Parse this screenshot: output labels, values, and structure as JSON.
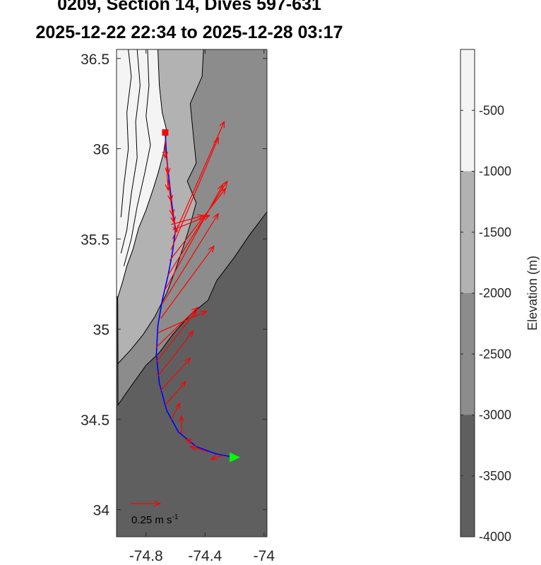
{
  "chart_data": {
    "type": "map",
    "title_lines": [
      "0209, Section 14, Dives 597-631",
      "2025-12-22 22:34 to 2025-12-28 03:17"
    ],
    "xlim": [
      -75.0,
      -73.98
    ],
    "ylim": [
      33.85,
      36.55
    ],
    "xticks": [
      -74.8,
      -74.4,
      -74.0
    ],
    "xtick_labels": [
      "-74.8",
      "-74.4",
      "-74"
    ],
    "yticks": [
      34.0,
      34.5,
      35.0,
      35.5,
      36.0,
      36.5
    ],
    "ytick_labels": [
      "34",
      "34.5",
      "35",
      "35.5",
      "36",
      "36.5"
    ],
    "colorbar": {
      "label": "Elevation (m)",
      "range": [
        -4000,
        0
      ],
      "ticks": [
        -500,
        -1000,
        -1500,
        -2000,
        -2500,
        -3000,
        -3500,
        -4000
      ],
      "tick_labels": [
        "-500",
        "-1000",
        "-1500",
        "-2000",
        "-2500",
        "-3000",
        "-3500",
        "-4000"
      ],
      "bands": [
        {
          "from": -1000,
          "to": 0,
          "color": "#f4f4f4"
        },
        {
          "from": -2000,
          "to": -1000,
          "color": "#b2b2b2"
        },
        {
          "from": -3000,
          "to": -2000,
          "color": "#8c8c8c"
        },
        {
          "from": -4000,
          "to": -3000,
          "color": "#5f5f5f"
        }
      ]
    },
    "bathymetry": {
      "shelf_boundary": [
        [
          -74.99,
          36.55
        ],
        [
          -74.72,
          36.55
        ],
        [
          -74.71,
          36.35
        ],
        [
          -74.69,
          36.2
        ],
        [
          -74.66,
          36.1
        ],
        [
          -74.68,
          35.98
        ],
        [
          -74.72,
          35.86
        ],
        [
          -74.75,
          35.78
        ],
        [
          -74.8,
          35.66
        ],
        [
          -74.85,
          35.56
        ],
        [
          -74.89,
          35.44
        ],
        [
          -74.93,
          35.35
        ],
        [
          -74.96,
          35.26
        ],
        [
          -74.99,
          35.18
        ]
      ],
      "mid_boundary": [
        [
          -74.41,
          36.55
        ],
        [
          -74.42,
          36.4
        ],
        [
          -74.5,
          36.25
        ],
        [
          -74.48,
          36.08
        ],
        [
          -74.46,
          35.92
        ],
        [
          -74.52,
          35.82
        ],
        [
          -74.46,
          35.7
        ],
        [
          -74.5,
          35.58
        ],
        [
          -74.55,
          35.45
        ],
        [
          -74.6,
          35.33
        ],
        [
          -74.66,
          35.2
        ],
        [
          -74.74,
          35.07
        ],
        [
          -74.82,
          34.97
        ],
        [
          -74.91,
          34.88
        ],
        [
          -74.99,
          34.81
        ]
      ],
      "deep_boundary": [
        [
          -73.98,
          35.65
        ],
        [
          -74.1,
          35.52
        ],
        [
          -74.2,
          35.4
        ],
        [
          -74.32,
          35.27
        ],
        [
          -74.38,
          35.16
        ],
        [
          -74.5,
          35.08
        ],
        [
          -74.62,
          34.97
        ],
        [
          -74.71,
          34.87
        ],
        [
          -74.8,
          34.8
        ],
        [
          -74.87,
          34.72
        ],
        [
          -74.94,
          34.64
        ],
        [
          -74.99,
          34.58
        ]
      ],
      "contours": [
        [
          [
            -74.92,
            36.55
          ],
          [
            -74.9,
            36.4
          ],
          [
            -74.93,
            36.2
          ],
          [
            -74.92,
            36.0
          ],
          [
            -74.95,
            35.8
          ],
          [
            -74.97,
            35.62
          ]
        ],
        [
          [
            -74.86,
            36.55
          ],
          [
            -74.84,
            36.35
          ],
          [
            -74.87,
            36.15
          ],
          [
            -74.86,
            35.95
          ],
          [
            -74.9,
            35.75
          ],
          [
            -74.93,
            35.55
          ],
          [
            -74.97,
            35.42
          ]
        ],
        [
          [
            -74.79,
            36.55
          ],
          [
            -74.78,
            36.35
          ],
          [
            -74.8,
            36.18
          ],
          [
            -74.77,
            36.02
          ],
          [
            -74.81,
            35.86
          ],
          [
            -74.86,
            35.68
          ],
          [
            -74.9,
            35.5
          ],
          [
            -74.95,
            35.35
          ]
        ]
      ]
    },
    "track": [
      [
        -74.67,
        36.09
      ],
      [
        -74.66,
        35.95
      ],
      [
        -74.64,
        35.8
      ],
      [
        -74.62,
        35.66
      ],
      [
        -74.6,
        35.55
      ],
      [
        -74.62,
        35.43
      ],
      [
        -74.65,
        35.3
      ],
      [
        -74.69,
        35.16
      ],
      [
        -74.72,
        35.02
      ],
      [
        -74.73,
        34.86
      ],
      [
        -74.71,
        34.7
      ],
      [
        -74.66,
        34.55
      ],
      [
        -74.58,
        34.43
      ],
      [
        -74.46,
        34.35
      ],
      [
        -74.33,
        34.31
      ],
      [
        -74.2,
        34.29
      ]
    ],
    "start_marker": {
      "lon": -74.67,
      "lat": 36.09,
      "color": "#ff0000"
    },
    "end_marker": {
      "lon": -74.2,
      "lat": 34.29,
      "color": "#00ff00"
    },
    "current_arrows": [
      [
        -74.67,
        36.05,
        0.0,
        -0.1
      ],
      [
        -74.66,
        35.98,
        0.01,
        -0.12
      ],
      [
        -74.66,
        35.9,
        0.01,
        -0.13
      ],
      [
        -74.65,
        35.83,
        0.02,
        -0.12
      ],
      [
        -74.64,
        35.76,
        0.02,
        -0.13
      ],
      [
        -74.63,
        35.69,
        0.02,
        -0.1
      ],
      [
        -74.62,
        35.62,
        0.03,
        -0.08
      ],
      [
        -74.63,
        35.58,
        0.22,
        0.05
      ],
      [
        -74.62,
        35.55,
        0.25,
        0.08
      ],
      [
        -74.62,
        35.5,
        0.35,
        0.65
      ],
      [
        -74.63,
        35.44,
        0.32,
        0.62
      ],
      [
        -74.64,
        35.38,
        0.38,
        0.4
      ],
      [
        -74.65,
        35.3,
        0.4,
        0.52
      ],
      [
        -74.67,
        35.22,
        0.39,
        0.58
      ],
      [
        -74.69,
        35.14,
        0.38,
        0.5
      ],
      [
        -74.7,
        35.06,
        0.36,
        0.4
      ],
      [
        -74.72,
        34.98,
        0.33,
        0.12
      ],
      [
        -74.73,
        34.9,
        0.28,
        0.22
      ],
      [
        -74.73,
        34.82,
        0.27,
        0.28
      ],
      [
        -74.72,
        34.74,
        0.24,
        0.25
      ],
      [
        -74.7,
        34.66,
        0.2,
        0.18
      ],
      [
        -74.67,
        34.58,
        0.14,
        0.13
      ],
      [
        -74.63,
        34.5,
        0.06,
        0.09
      ],
      [
        -74.56,
        34.42,
        0.0,
        0.1
      ],
      [
        -74.48,
        34.37,
        -0.05,
        0.02
      ],
      [
        -74.38,
        34.32,
        -0.12,
        0.03
      ],
      [
        -74.28,
        34.3,
        -0.08,
        -0.02
      ]
    ],
    "arrow_color": "#ff0000",
    "track_color": "#0000ff",
    "scale_arrow": {
      "label_prefix": "0.25 m s",
      "label_exp": "-1",
      "dlon": 0.2
    }
  }
}
